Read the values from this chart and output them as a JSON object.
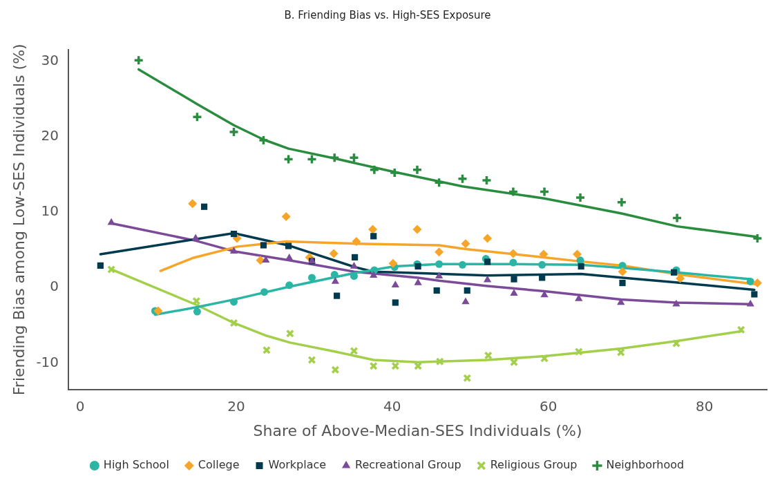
{
  "chart_data": {
    "type": "scatter",
    "title": "B. Friending Bias vs. High-SES Exposure",
    "xlabel": "Share of Above-Median-SES Individuals (%)",
    "ylabel": "Friending Bias among Low-SES Individuals (%)",
    "xlim": [
      -1.5,
      88
    ],
    "xticks": [
      0,
      20,
      40,
      60,
      80
    ],
    "ylim": [
      -13.5,
      31.5
    ],
    "yticks": [
      -10,
      0,
      10,
      20,
      30
    ],
    "grid": false,
    "legend": "bottom",
    "series": [
      {
        "name": "High School",
        "marker": "circle",
        "color": "#2bb5a4",
        "x": [
          9.6,
          15,
          19.7,
          23.6,
          26.8,
          29.7,
          32.6,
          35.1,
          37.7,
          40.3,
          43.2,
          46,
          49,
          52,
          55.5,
          59.2,
          64.1,
          69.5,
          76.4,
          85.9
        ],
        "values": [
          -3.1,
          -3.2,
          -1.9,
          -0.6,
          0.3,
          1.3,
          1.7,
          1.5,
          2.3,
          2.7,
          3.1,
          3.1,
          3.0,
          3.8,
          3.3,
          3.0,
          3.6,
          2.9,
          2.3,
          0.8
        ]
      },
      {
        "name": "College",
        "marker": "diamond",
        "color": "#f7a529",
        "x": [
          10,
          14.4,
          20.1,
          23.1,
          26.4,
          29.4,
          32.5,
          35.4,
          37.5,
          40.1,
          43.2,
          46,
          49.4,
          52.2,
          55.5,
          59.4,
          63.7,
          69.5,
          76.9,
          86.8
        ],
        "values": [
          -3.1,
          11.1,
          6.5,
          3.6,
          9.4,
          4.0,
          4.5,
          6.1,
          7.7,
          3.2,
          7.7,
          4.7,
          5.8,
          6.5,
          4.5,
          4.4,
          4.4,
          2.1,
          1.2,
          0.6
        ]
      },
      {
        "name": "Workplace",
        "marker": "square",
        "color": "#003a4f",
        "x": [
          2.6,
          15.9,
          19.7,
          23.5,
          26.7,
          29.7,
          32.9,
          35.2,
          37.6,
          40.4,
          43.3,
          45.7,
          49.6,
          52.2,
          55.6,
          59.2,
          64.2,
          69.5,
          76.1,
          86.4
        ],
        "values": [
          2.9,
          10.7,
          7.1,
          5.6,
          5.5,
          3.5,
          -1.1,
          4.0,
          6.8,
          -2.0,
          2.8,
          -0.4,
          -0.4,
          3.4,
          1.1,
          1.3,
          2.8,
          0.6,
          2.0,
          -0.9
        ]
      },
      {
        "name": "Recreational Group",
        "marker": "triangle",
        "color": "#7b4a98",
        "x": [
          4,
          14.8,
          19.7,
          23.8,
          26.8,
          29.7,
          32.7,
          35.1,
          37.6,
          40.4,
          43.3,
          46,
          49.4,
          52.2,
          55.6,
          59.5,
          63.9,
          69.3,
          76.4,
          85.9
        ],
        "values": [
          8.6,
          6.5,
          4.8,
          3.6,
          3.9,
          3.5,
          0.8,
          2.8,
          1.6,
          0.3,
          0.6,
          1.5,
          -1.9,
          1.0,
          -0.8,
          -1.0,
          -1.5,
          -2.0,
          -2.2,
          -2.2
        ]
      },
      {
        "name": "Religious Group",
        "marker": "x",
        "color": "#a3cf4a",
        "x": [
          4,
          14.9,
          19.7,
          23.9,
          26.9,
          29.7,
          32.7,
          35.1,
          37.6,
          40.4,
          43.3,
          46.1,
          49.6,
          52.3,
          55.6,
          59.5,
          63.9,
          69.3,
          76.4,
          84.7
        ],
        "values": [
          2.4,
          -1.8,
          -4.7,
          -8.3,
          -6.1,
          -9.6,
          -10.9,
          -8.4,
          -10.4,
          -10.4,
          -10.4,
          -9.8,
          -12.0,
          -9.0,
          -9.9,
          -9.4,
          -8.5,
          -8.6,
          -7.4,
          -5.6
        ]
      },
      {
        "name": "Neighborhood",
        "marker": "cross",
        "color": "#2a8c3e",
        "x": [
          7.5,
          15,
          19.7,
          23.5,
          26.7,
          29.7,
          32.6,
          35.1,
          37.7,
          40.3,
          43.2,
          46,
          49,
          52.1,
          55.5,
          59.5,
          64.1,
          69.4,
          76.5,
          86.8
        ],
        "values": [
          30.1,
          22.6,
          20.6,
          19.5,
          17.0,
          17.0,
          17.2,
          17.2,
          15.6,
          15.2,
          15.6,
          13.9,
          14.4,
          14.2,
          12.7,
          12.7,
          11.9,
          11.3,
          9.2,
          6.5
        ]
      },
      {
        "type": "line",
        "marker": "none",
        "color": "#2bb5a4",
        "x": [
          9.6,
          15,
          19.7,
          26.8,
          35.1,
          40.3,
          46,
          55.5,
          64.1,
          69.5,
          76.4,
          85.9
        ],
        "values": [
          -3.6,
          -2.6,
          -1.6,
          0.1,
          1.9,
          2.8,
          3.1,
          3.1,
          3.0,
          2.6,
          2.0,
          1.1
        ]
      },
      {
        "type": "line",
        "marker": "none",
        "color": "#f7a529",
        "x": [
          10.3,
          14.4,
          20.1,
          26.4,
          35.4,
          46,
          49.4,
          59.4,
          63.7,
          69.5,
          76.9,
          86.8
        ],
        "values": [
          2.2,
          3.9,
          5.4,
          6.1,
          5.8,
          5.6,
          5.1,
          4.0,
          3.5,
          2.9,
          1.7,
          0.4
        ]
      },
      {
        "type": "line",
        "marker": "none",
        "color": "#003a4f",
        "x": [
          2.6,
          19.7,
          26.6,
          35.2,
          37.6,
          43.2,
          52.2,
          59,
          64.2,
          69.5,
          76.1,
          86.4
        ],
        "values": [
          4.4,
          7.2,
          5.6,
          2.7,
          2.1,
          1.9,
          1.6,
          1.7,
          1.8,
          1.3,
          0.7,
          -0.3
        ]
      },
      {
        "type": "line",
        "marker": "none",
        "color": "#7b4a98",
        "x": [
          4,
          14.8,
          19.7,
          26.8,
          35.1,
          43.3,
          46,
          52.2,
          59.5,
          69.3,
          76.4,
          85.9
        ],
        "values": [
          8.5,
          6.2,
          4.8,
          3.6,
          2.1,
          1.3,
          0.9,
          0.2,
          -0.5,
          -1.6,
          -2.0,
          -2.2
        ]
      },
      {
        "type": "line",
        "marker": "none",
        "color": "#a3cf4a",
        "x": [
          4,
          14.9,
          19.7,
          23.9,
          26.9,
          32.7,
          37.6,
          43.3,
          52.2,
          59.5,
          69.3,
          76.4,
          84.7
        ],
        "values": [
          2.4,
          -2.3,
          -4.7,
          -6.4,
          -7.3,
          -8.5,
          -9.6,
          -9.9,
          -9.6,
          -9.1,
          -8.1,
          -7.1,
          -5.8
        ]
      },
      {
        "type": "line",
        "marker": "none",
        "color": "#2a8c3e",
        "x": [
          7.5,
          15,
          19.7,
          23.5,
          26.7,
          32.6,
          40.3,
          49,
          59.5,
          69.4,
          76.5,
          86.8
        ],
        "values": [
          28.9,
          24.3,
          21.5,
          19.6,
          18.4,
          17.1,
          15.3,
          13.4,
          11.8,
          9.8,
          8.1,
          6.7
        ]
      }
    ]
  }
}
